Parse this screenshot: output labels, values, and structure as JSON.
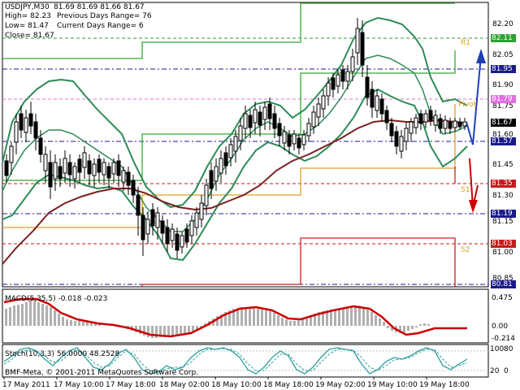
{
  "header": {
    "symbol_line": "USDJPY,M30",
    "ohlc_line": "81.69 81.69 81.66 81.67",
    "high_line": "High= 82.23",
    "low_line": "Low= 81.47",
    "close_line": "Close= 81.67",
    "prev_range_line": "Previous Days Range= 76",
    "curr_range_line": "Current Days Range= 6"
  },
  "price_axis": {
    "ticks": [
      "82.20",
      "82.05",
      "81.90",
      "81.75",
      "81.60",
      "81.45",
      "81.30",
      "81.15",
      "81.00",
      "80.85"
    ],
    "tags": [
      {
        "label": "82.11",
        "color": "#2fa12f"
      },
      {
        "label": "81.95",
        "color": "#1b1b8c"
      },
      {
        "label": "81.79",
        "color": "#e36ee3"
      },
      {
        "label": "81.67",
        "color": "#000000"
      },
      {
        "label": "81.57",
        "color": "#1b1b8c"
      },
      {
        "label": "81.35",
        "color": "#c61a1a"
      },
      {
        "label": "81.19",
        "color": "#1b1b8c"
      },
      {
        "label": "81.03",
        "color": "#c61a1a"
      },
      {
        "label": "80.81",
        "color": "#1b1b8c"
      }
    ]
  },
  "level_labels": [
    "R1",
    "Pivot",
    "S1",
    "S2"
  ],
  "macd": {
    "label": "MACD(5,35,5) -0.018 -0.023",
    "ticks": [
      "0.475",
      "0.00",
      "-0.214"
    ]
  },
  "stoch": {
    "label": "Stoch(10,3,3) 56.0000 48.2528",
    "ticks": [
      "100",
      "80",
      "20",
      "0"
    ]
  },
  "footer": {
    "copyright": "BMF-Meta, © 2001-2011 MetaQuotes Software Corp.",
    "time_labels": [
      "17 May 2011",
      "17 May 10:00",
      "17 May 18:00",
      "18 May 02:00",
      "18 May 10:00",
      "18 May 18:00",
      "19 May 02:00",
      "19 May 10:00",
      "19 May 18:00"
    ]
  },
  "colors": {
    "bollinger": "#2e8b57",
    "moving_average": "#7a1f1f",
    "macd_signal": "#cc0000",
    "up_arrow": "#1f3fb5",
    "down_arrow": "#cc0000"
  }
}
